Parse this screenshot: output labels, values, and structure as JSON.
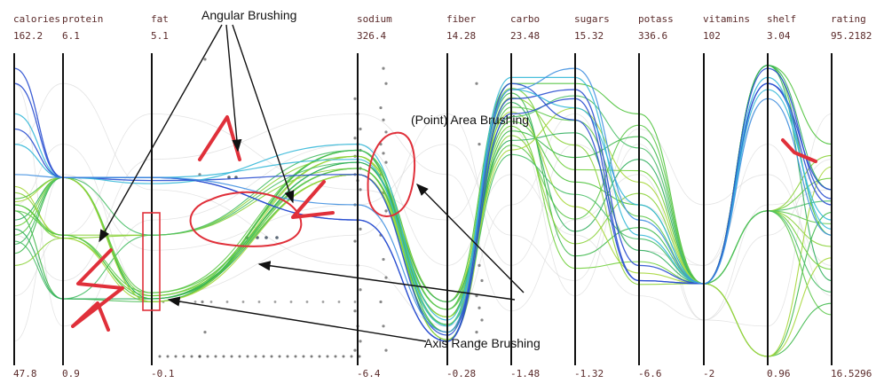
{
  "chart_data": {
    "type": "parallel-coordinates",
    "title": "",
    "axes": [
      {
        "name": "calories",
        "max": "162.2",
        "min": "47.8"
      },
      {
        "name": "protein",
        "max": "6.1",
        "min": "0.9"
      },
      {
        "name": "fat",
        "max": "5.1",
        "min": "-0.1"
      },
      {
        "name": "sodium",
        "max": "326.4",
        "min": "-6.4"
      },
      {
        "name": "fiber",
        "max": "14.28",
        "min": "-0.28"
      },
      {
        "name": "carbo",
        "max": "23.48",
        "min": "-1.48"
      },
      {
        "name": "sugars",
        "max": "15.32",
        "min": "-1.32"
      },
      {
        "name": "potass",
        "max": "336.6",
        "min": "-6.6"
      },
      {
        "name": "vitamins",
        "max": "102",
        "min": "-2"
      },
      {
        "name": "shelf",
        "max": "3.04",
        "min": "0.96"
      },
      {
        "name": "rating",
        "max": "95.2182",
        "min": "16.5296"
      }
    ],
    "annotations": [
      {
        "id": "angular",
        "text": "Angular Brushing"
      },
      {
        "id": "area",
        "text": "(Point) Area Brushing"
      },
      {
        "id": "range",
        "text": "Axis Range Brushing"
      }
    ],
    "colors": {
      "axis": "#111111",
      "selected": "#5cc23a",
      "highlight_blue": "#2a4fd0",
      "highlight_cyan": "#35b8d8",
      "brush": "#e0303a",
      "context": "#d8d8d8"
    }
  }
}
